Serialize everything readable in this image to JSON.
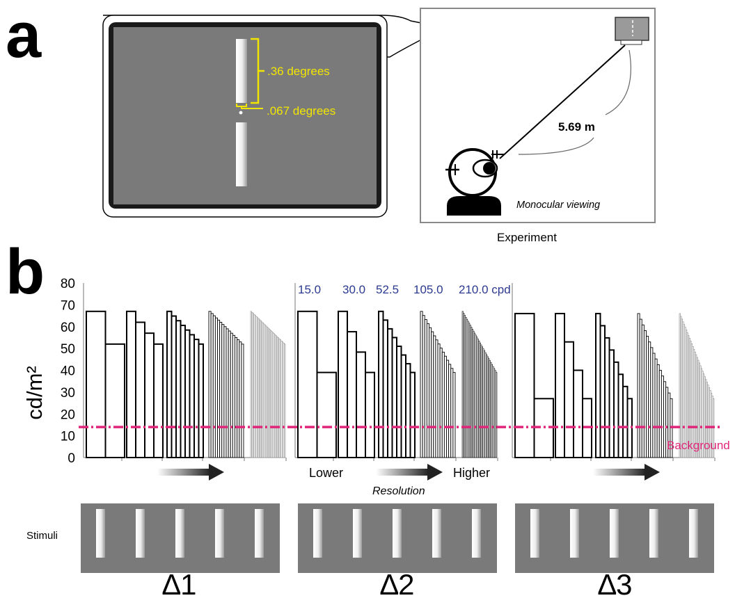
{
  "panel_a": {
    "label": "a",
    "monitor": {
      "bar_height_label": ".36 degrees",
      "gap_label": ".067 degrees"
    },
    "room": {
      "distance_label": "5.69 m",
      "viewing_label": "Monocular viewing",
      "caption": "Experiment"
    }
  },
  "panel_b": {
    "label": "b",
    "ylabel": "cd/m²",
    "yticks": [
      "80",
      "70",
      "60",
      "50",
      "40",
      "30",
      "20",
      "10",
      "0"
    ],
    "frequency_labels": [
      "15.0",
      "30.0",
      "52.5",
      "105.0",
      "210.0 cpd"
    ],
    "background_label": "Background",
    "background_level": 14,
    "lower_label": "Lower",
    "higher_label": "Higher",
    "resolution_label": "Resolution",
    "stimuli_label": "Stimuli",
    "conditions": [
      {
        "label": "∆1",
        "max": 67,
        "min": 52
      },
      {
        "label": "∆2",
        "max": 67,
        "min": 39
      },
      {
        "label": "∆3",
        "max": 66,
        "min": 27
      }
    ],
    "bars_per_group": [
      2,
      4,
      8,
      16,
      32
    ],
    "colors": {
      "background_line": "#e0267a",
      "frequency_text": "#2b3990",
      "annotation": "#f2e600",
      "screen": "#7a7a7a"
    }
  }
}
